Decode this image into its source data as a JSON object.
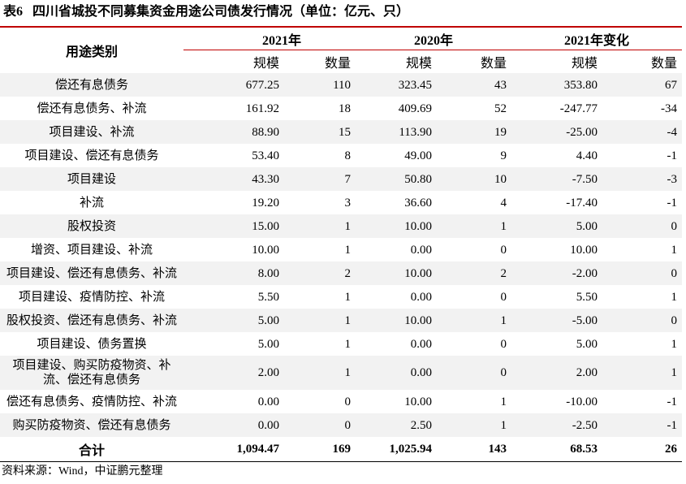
{
  "title": {
    "number": "表6",
    "text": "四川省城投不同募集资金用途公司债发行情况（单位：亿元、只）"
  },
  "header": {
    "category": "用途类别",
    "groups": [
      "2021年",
      "2020年",
      "2021年变化"
    ],
    "sub": [
      "规模",
      "数量",
      "规模",
      "数量",
      "规模",
      "数量"
    ]
  },
  "rows": [
    [
      "偿还有息债务",
      "677.25",
      "110",
      "323.45",
      "43",
      "353.80",
      "67"
    ],
    [
      "偿还有息债务、补流",
      "161.92",
      "18",
      "409.69",
      "52",
      "-247.77",
      "-34"
    ],
    [
      "项目建设、补流",
      "88.90",
      "15",
      "113.90",
      "19",
      "-25.00",
      "-4"
    ],
    [
      "项目建设、偿还有息债务",
      "53.40",
      "8",
      "49.00",
      "9",
      "4.40",
      "-1"
    ],
    [
      "项目建设",
      "43.30",
      "7",
      "50.80",
      "10",
      "-7.50",
      "-3"
    ],
    [
      "补流",
      "19.20",
      "3",
      "36.60",
      "4",
      "-17.40",
      "-1"
    ],
    [
      "股权投资",
      "15.00",
      "1",
      "10.00",
      "1",
      "5.00",
      "0"
    ],
    [
      "增资、项目建设、补流",
      "10.00",
      "1",
      "0.00",
      "0",
      "10.00",
      "1"
    ],
    [
      "项目建设、偿还有息债务、补流",
      "8.00",
      "2",
      "10.00",
      "2",
      "-2.00",
      "0"
    ],
    [
      "项目建设、疫情防控、补流",
      "5.50",
      "1",
      "0.00",
      "0",
      "5.50",
      "1"
    ],
    [
      "股权投资、偿还有息债务、补流",
      "5.00",
      "1",
      "10.00",
      "1",
      "-5.00",
      "0"
    ],
    [
      "项目建设、债务置换",
      "5.00",
      "1",
      "0.00",
      "0",
      "5.00",
      "1"
    ],
    [
      "项目建设、购买防疫物资、补流、偿还有息债务",
      "2.00",
      "1",
      "0.00",
      "0",
      "2.00",
      "1"
    ],
    [
      "偿还有息债务、疫情防控、补流",
      "0.00",
      "0",
      "10.00",
      "1",
      "-10.00",
      "-1"
    ],
    [
      "购买防疫物资、偿还有息债务",
      "0.00",
      "0",
      "2.50",
      "1",
      "-2.50",
      "-1"
    ]
  ],
  "total": [
    "合计",
    "1,094.47",
    "169",
    "1,025.94",
    "143",
    "68.53",
    "26"
  ],
  "source": "资料来源：Wind，中证鹏元整理",
  "colors": {
    "accent_line": "#c00000",
    "row_shade": "#f2f2f2"
  }
}
